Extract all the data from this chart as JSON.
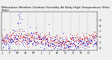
{
  "title": "Milwaukee Weather Outdoor Humidity At Daily High Temperature (Past Year)",
  "ylim": [
    3.5,
    10.5
  ],
  "yticks": [
    4,
    5,
    6,
    7,
    8,
    9
  ],
  "background_color": "#f0f0f0",
  "blue_color": "#0000dd",
  "red_color": "#dd0000",
  "grid_color": "#888888",
  "n_days": 365,
  "n_gridlines": 11,
  "title_fontsize": 3.2,
  "tick_fontsize": 2.8,
  "spike_days": [
    62,
    68,
    72,
    76,
    182
  ],
  "spike_heights": [
    4.5,
    5.0,
    4.2,
    3.8,
    2.5
  ],
  "seed": 12
}
